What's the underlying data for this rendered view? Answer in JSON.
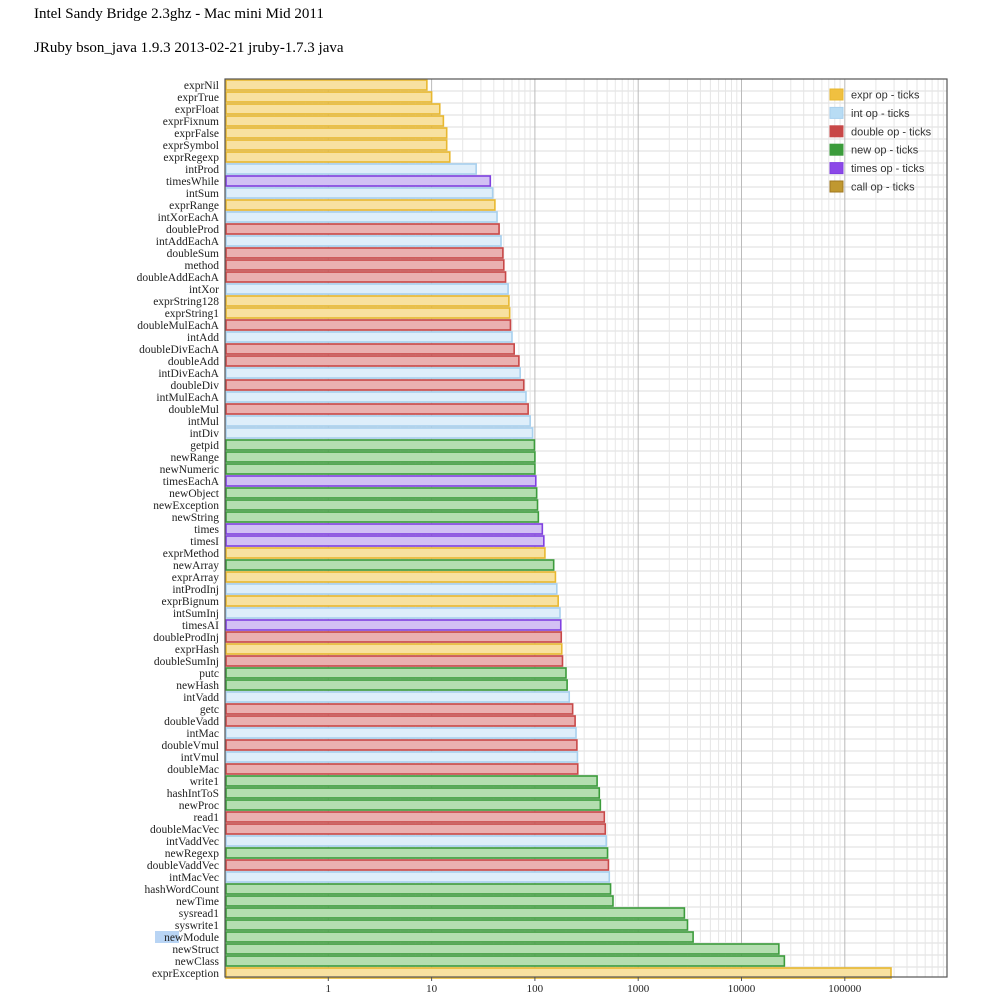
{
  "title": "Intel Sandy Bridge 2.3ghz - Mac mini Mid 2011",
  "subtitle": "JRuby bson_java 1.9.3 2013-02-21 jruby-1.7.3 java",
  "chart_data": {
    "type": "bar",
    "orientation": "horizontal",
    "x_scale": "log",
    "xlim": [
      0.15,
      1000000
    ],
    "x_ticks": [
      1,
      10,
      100,
      1000,
      10000,
      100000
    ],
    "grid": true,
    "legend_position": "top-right",
    "title": "",
    "xlabel": "",
    "ylabel": "",
    "series": [
      {
        "key": "expr",
        "name": "expr op - ticks",
        "fill": "#f8e1a0",
        "stroke": "#e8b830",
        "legend": "#f0c040"
      },
      {
        "key": "int",
        "name": "int op - ticks",
        "fill": "#deeefa",
        "stroke": "#a8d0ee",
        "legend": "#b8dcf4"
      },
      {
        "key": "double",
        "name": "double op - ticks",
        "fill": "#eab0b0",
        "stroke": "#c84848",
        "legend": "#c84848"
      },
      {
        "key": "new",
        "name": "new op - ticks",
        "fill": "#b4deb0",
        "stroke": "#3c9c3c",
        "legend": "#3c9c3c"
      },
      {
        "key": "times",
        "name": "times op - ticks",
        "fill": "#d2c0f4",
        "stroke": "#8040e0",
        "legend": "#8c48e8"
      },
      {
        "key": "call",
        "name": "call op - ticks",
        "fill": "#d8b048",
        "stroke": "#a07820",
        "legend": "#c09830"
      }
    ],
    "bars": [
      {
        "label": "exprNil",
        "series": "expr",
        "value": 9
      },
      {
        "label": "exprTrue",
        "series": "expr",
        "value": 10
      },
      {
        "label": "exprFloat",
        "series": "expr",
        "value": 12
      },
      {
        "label": "exprFixnum",
        "series": "expr",
        "value": 13
      },
      {
        "label": "exprFalse",
        "series": "expr",
        "value": 14
      },
      {
        "label": "exprSymbol",
        "series": "expr",
        "value": 14
      },
      {
        "label": "exprRegexp",
        "series": "expr",
        "value": 15
      },
      {
        "label": "intProd",
        "series": "int",
        "value": 27
      },
      {
        "label": "timesWhile",
        "series": "times",
        "value": 37
      },
      {
        "label": "intSum",
        "series": "int",
        "value": 39
      },
      {
        "label": "exprRange",
        "series": "expr",
        "value": 41
      },
      {
        "label": "intXorEachA",
        "series": "int",
        "value": 43
      },
      {
        "label": "doubleProd",
        "series": "double",
        "value": 45
      },
      {
        "label": "intAddEachA",
        "series": "int",
        "value": 47
      },
      {
        "label": "doubleSum",
        "series": "double",
        "value": 49
      },
      {
        "label": "method",
        "series": "double",
        "value": 50
      },
      {
        "label": "doubleAddEachA",
        "series": "double",
        "value": 52
      },
      {
        "label": "intXor",
        "series": "int",
        "value": 55
      },
      {
        "label": "exprString128",
        "series": "expr",
        "value": 56
      },
      {
        "label": "exprString1",
        "series": "expr",
        "value": 57
      },
      {
        "label": "doubleMulEachA",
        "series": "double",
        "value": 58
      },
      {
        "label": "intAdd",
        "series": "int",
        "value": 60
      },
      {
        "label": "doubleDivEachA",
        "series": "double",
        "value": 63
      },
      {
        "label": "doubleAdd",
        "series": "double",
        "value": 70
      },
      {
        "label": "intDivEachA",
        "series": "int",
        "value": 72
      },
      {
        "label": "doubleDiv",
        "series": "double",
        "value": 78
      },
      {
        "label": "intMulEachA",
        "series": "int",
        "value": 82
      },
      {
        "label": "doubleMul",
        "series": "double",
        "value": 86
      },
      {
        "label": "intMul",
        "series": "int",
        "value": 90
      },
      {
        "label": "intDiv",
        "series": "int",
        "value": 95
      },
      {
        "label": "getpid",
        "series": "new",
        "value": 99
      },
      {
        "label": "newRange",
        "series": "new",
        "value": 100
      },
      {
        "label": "newNumeric",
        "series": "new",
        "value": 100
      },
      {
        "label": "timesEachA",
        "series": "times",
        "value": 102
      },
      {
        "label": "newObject",
        "series": "new",
        "value": 104
      },
      {
        "label": "newException",
        "series": "new",
        "value": 106
      },
      {
        "label": "newString",
        "series": "new",
        "value": 108
      },
      {
        "label": "times",
        "series": "times",
        "value": 118
      },
      {
        "label": "timesI",
        "series": "times",
        "value": 122
      },
      {
        "label": "exprMethod",
        "series": "expr",
        "value": 125
      },
      {
        "label": "newArray",
        "series": "new",
        "value": 152
      },
      {
        "label": "exprArray",
        "series": "expr",
        "value": 158
      },
      {
        "label": "intProdInj",
        "series": "int",
        "value": 163
      },
      {
        "label": "exprBignum",
        "series": "expr",
        "value": 168
      },
      {
        "label": "intSumInj",
        "series": "int",
        "value": 175
      },
      {
        "label": "timesAI",
        "series": "times",
        "value": 178
      },
      {
        "label": "doubleProdInj",
        "series": "double",
        "value": 180
      },
      {
        "label": "exprHash",
        "series": "expr",
        "value": 182
      },
      {
        "label": "doubleSumInj",
        "series": "double",
        "value": 185
      },
      {
        "label": "putc",
        "series": "new",
        "value": 200
      },
      {
        "label": "newHash",
        "series": "new",
        "value": 205
      },
      {
        "label": "intVadd",
        "series": "int",
        "value": 215
      },
      {
        "label": "getc",
        "series": "double",
        "value": 232
      },
      {
        "label": "doubleVadd",
        "series": "double",
        "value": 245
      },
      {
        "label": "intMac",
        "series": "int",
        "value": 250
      },
      {
        "label": "doubleVmul",
        "series": "double",
        "value": 255
      },
      {
        "label": "intVmul",
        "series": "int",
        "value": 258
      },
      {
        "label": "doubleMac",
        "series": "double",
        "value": 260
      },
      {
        "label": "write1",
        "series": "new",
        "value": 400
      },
      {
        "label": "hashIntToS",
        "series": "new",
        "value": 420
      },
      {
        "label": "newProc",
        "series": "new",
        "value": 430
      },
      {
        "label": "read1",
        "series": "double",
        "value": 470
      },
      {
        "label": "doubleMacVec",
        "series": "double",
        "value": 480
      },
      {
        "label": "intVaddVec",
        "series": "int",
        "value": 490
      },
      {
        "label": "newRegexp",
        "series": "new",
        "value": 505
      },
      {
        "label": "doubleVaddVec",
        "series": "double",
        "value": 515
      },
      {
        "label": "intMacVec",
        "series": "int",
        "value": 525
      },
      {
        "label": "hashWordCount",
        "series": "new",
        "value": 540
      },
      {
        "label": "newTime",
        "series": "new",
        "value": 570
      },
      {
        "label": "sysread1",
        "series": "new",
        "value": 2800
      },
      {
        "label": "syswrite1",
        "series": "new",
        "value": 3000
      },
      {
        "label": "newModule",
        "series": "new",
        "value": 3400
      },
      {
        "label": "newStruct",
        "series": "new",
        "value": 23000
      },
      {
        "label": "newClass",
        "series": "new",
        "value": 26000
      },
      {
        "label": "exprException",
        "series": "expr",
        "value": 280000
      }
    ],
    "highlighted_label": "newModule"
  }
}
